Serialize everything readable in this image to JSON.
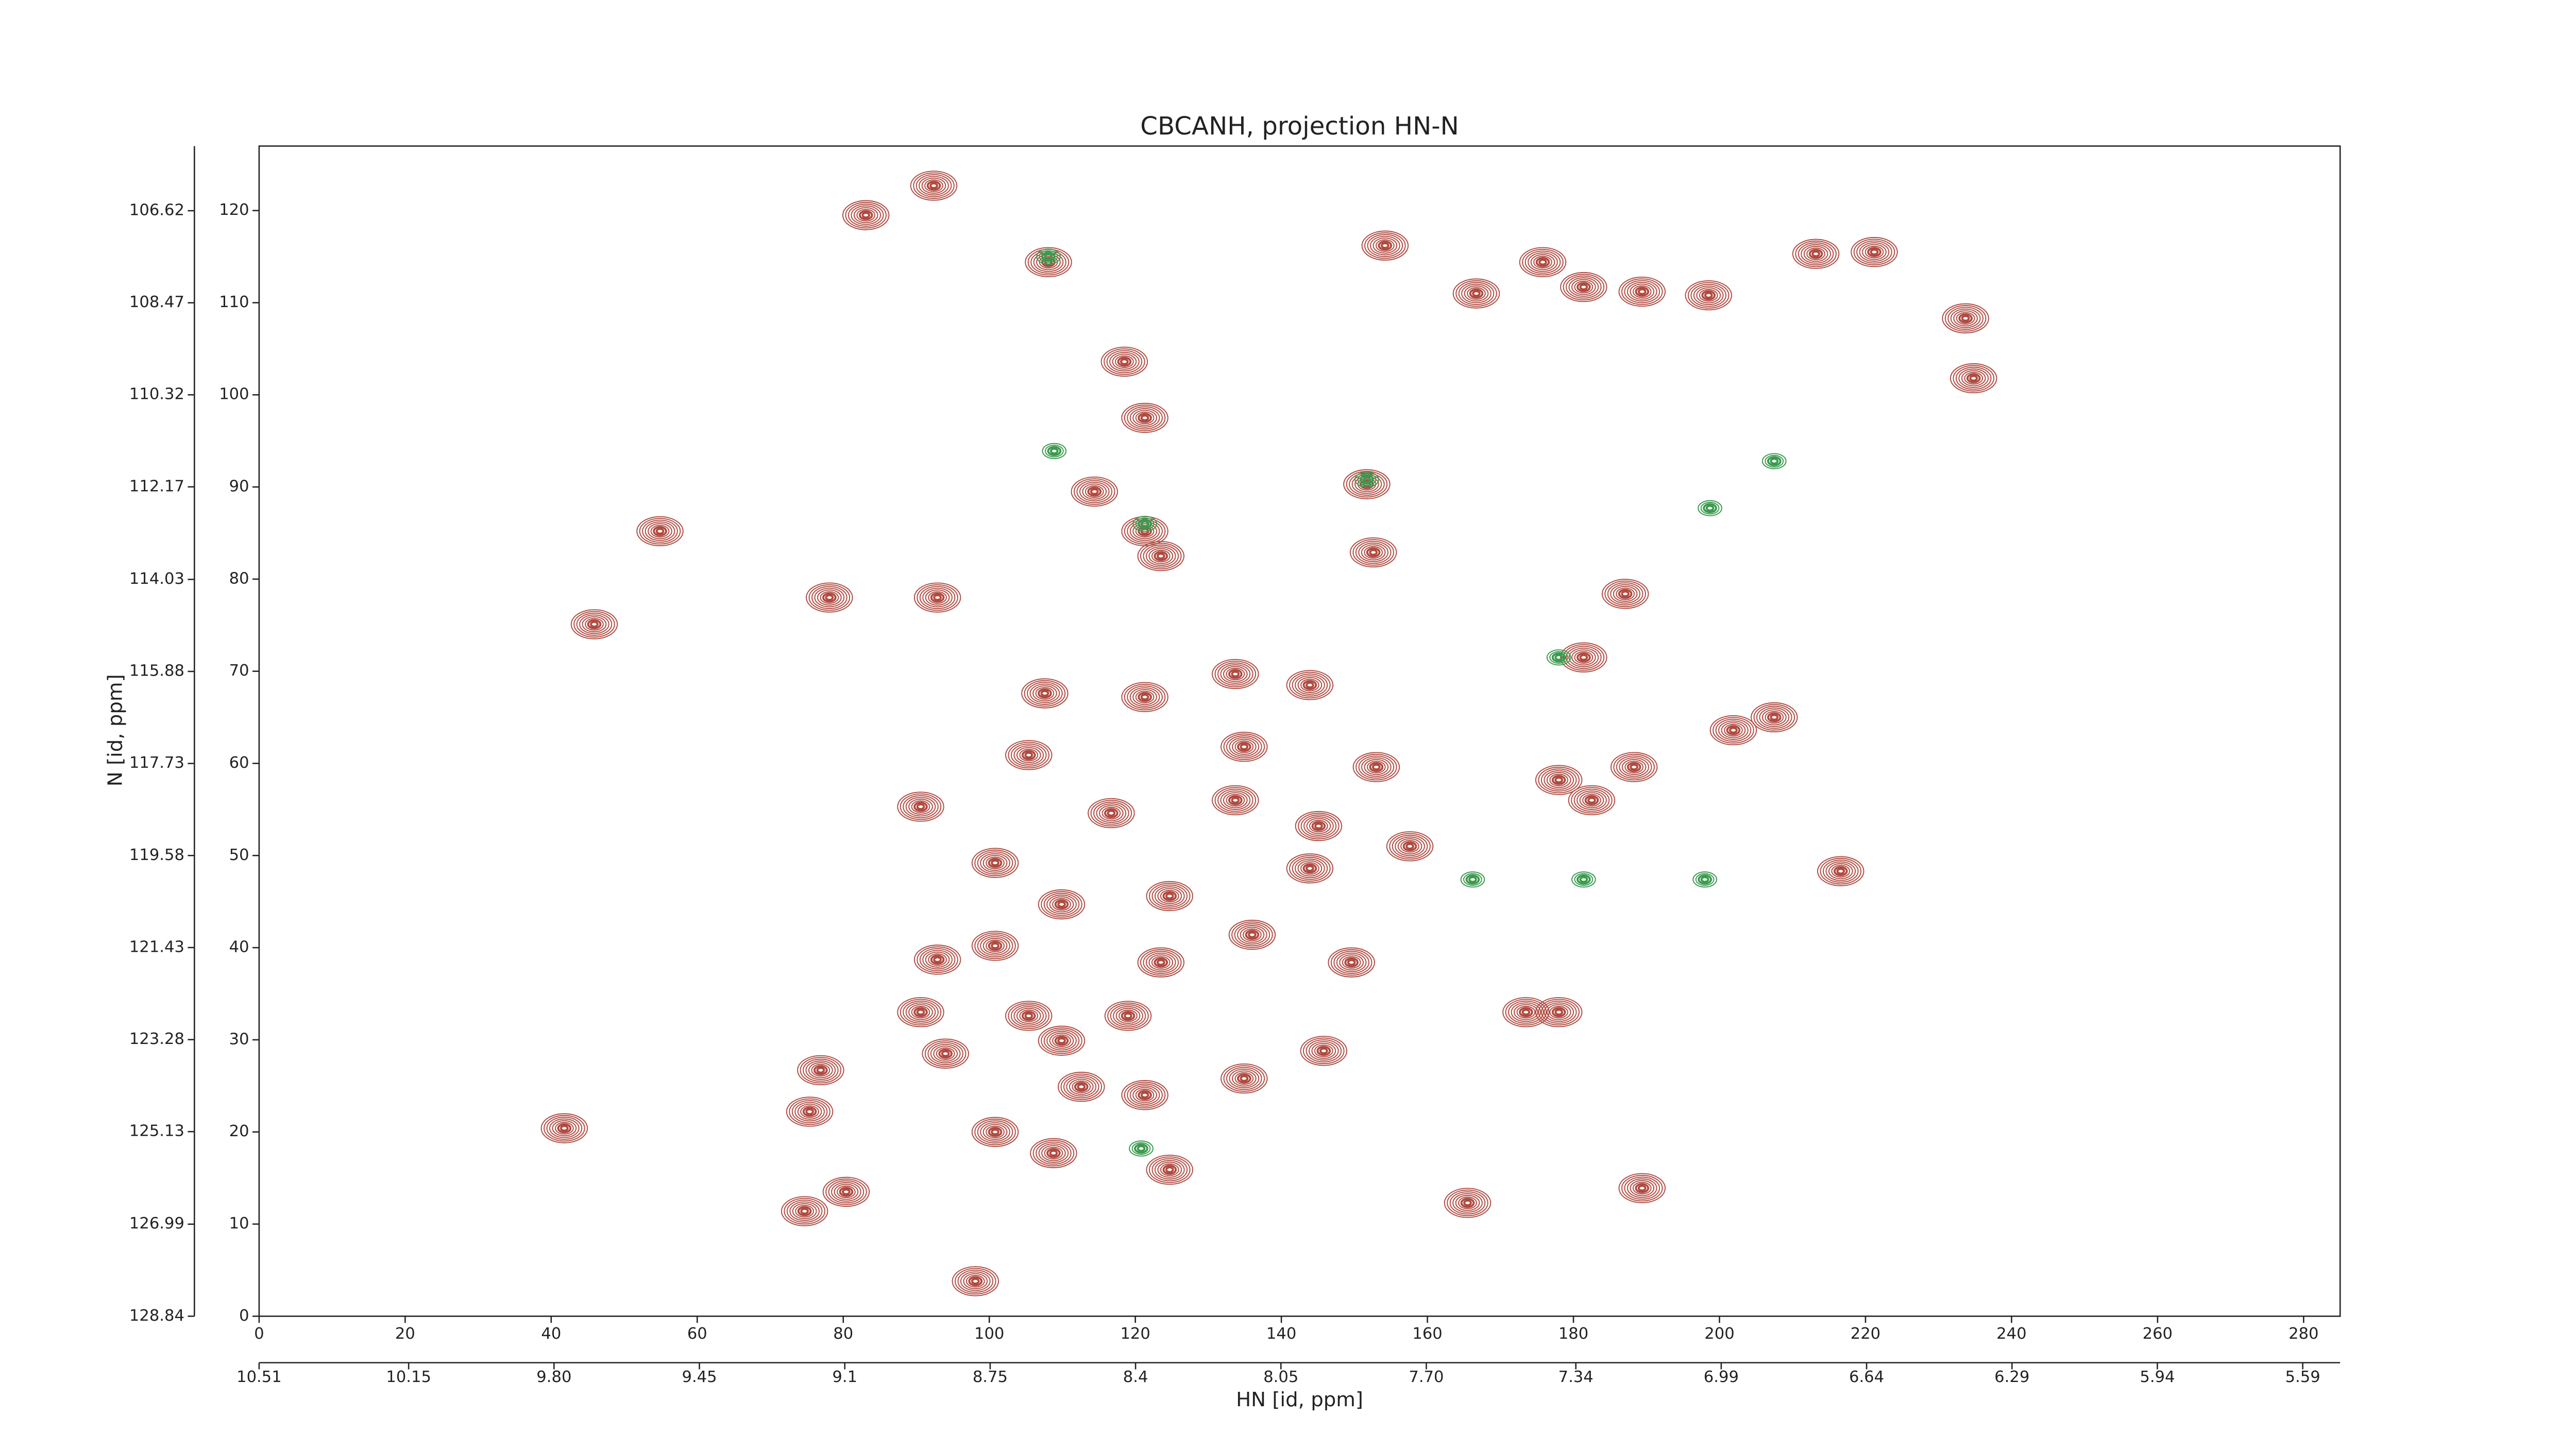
{
  "chart_data": {
    "type": "contour",
    "title": "CBCANH, projection HN-N",
    "xlabel": "HN [id, ppm]",
    "ylabel": "N [id, ppm]",
    "xlim": [
      0,
      285
    ],
    "xticks": [
      0,
      20,
      40,
      60,
      80,
      100,
      120,
      140,
      160,
      180,
      200,
      220,
      240,
      260,
      280
    ],
    "ylim": [
      0,
      127
    ],
    "yticks": [
      0,
      10,
      20,
      30,
      40,
      50,
      60,
      70,
      80,
      90,
      100,
      110,
      120
    ],
    "x2lim": [
      10.51,
      5.5
    ],
    "x2ticks": [
      10.51,
      10.15,
      {
        "value": 9.8,
        "label": "9.80"
      },
      9.45,
      9.1,
      8.75,
      8.4,
      8.05,
      {
        "value": 7.7,
        "label": "7.70"
      },
      7.34,
      6.99,
      6.64,
      6.29,
      5.94,
      5.59
    ],
    "y2lim": [
      128.84,
      105.32
    ],
    "y2ticks": [
      128.84,
      126.99,
      125.13,
      123.28,
      121.43,
      119.58,
      117.73,
      115.88,
      114.03,
      112.17,
      110.32,
      108.47,
      106.62
    ],
    "grid": false,
    "series": [
      {
        "color": "#b04a40",
        "x": [
          92.4,
          83.1,
          108.1,
          154.2,
          175.8,
          181.4,
          189.4,
          198.5,
          213.2,
          221.2,
          166.7,
          233.7,
          234.8,
          118.5,
          121.3,
          54.9,
          114.4,
          121.3,
          123.5,
          152.6,
          151.7,
          78.1,
          92.9,
          187.1,
          45.9,
          181.4,
          133.7,
          143.9,
          121.3,
          107.6,
          201.9,
          207.5,
          105.4,
          134.9,
          153.0,
          178.0,
          188.3,
          182.5,
          90.6,
          116.7,
          133.7,
          145.1,
          157.6,
          216.6,
          143.9,
          100.8,
          124.7,
          109.9,
          92.9,
          100.8,
          136.0,
          149.6,
          123.5,
          90.6,
          105.4,
          109.9,
          119.0,
          173.5,
          178.0,
          94.0,
          145.8,
          134.9,
          112.6,
          121.3,
          76.9,
          75.4,
          41.8,
          100.8,
          108.8,
          124.7,
          189.4,
          165.5,
          80.4,
          74.7,
          98.1
        ],
        "y": [
          122.7,
          119.5,
          114.4,
          116.2,
          114.4,
          111.7,
          111.2,
          110.8,
          115.3,
          115.5,
          111.0,
          108.3,
          101.8,
          103.6,
          97.5,
          85.2,
          89.5,
          85.2,
          82.5,
          82.9,
          90.3,
          78.0,
          78.0,
          78.4,
          75.1,
          71.5,
          69.7,
          68.5,
          67.2,
          67.6,
          63.6,
          65.0,
          60.9,
          61.8,
          59.6,
          58.2,
          59.6,
          56.0,
          55.3,
          54.6,
          56.0,
          53.2,
          51.0,
          48.3,
          48.6,
          49.2,
          45.6,
          44.7,
          38.7,
          40.2,
          41.4,
          38.4,
          38.4,
          33.0,
          32.6,
          29.9,
          32.6,
          33.0,
          33.0,
          28.5,
          28.8,
          25.8,
          24.9,
          24.0,
          26.7,
          22.2,
          20.4,
          20.0,
          17.7,
          15.9,
          13.9,
          12.3,
          13.5,
          11.4,
          3.8
        ]
      },
      {
        "color": "#3a9a4e",
        "x": [
          108.9,
          181.4,
          198.0,
          166.2,
          207.5,
          198.7,
          178.0,
          120.8,
          108.1,
          151.7,
          121.3
        ],
        "y": [
          93.9,
          47.4,
          47.4,
          47.4,
          92.8,
          87.7,
          71.5,
          18.2,
          115.0,
          90.8,
          86.0
        ]
      }
    ]
  }
}
